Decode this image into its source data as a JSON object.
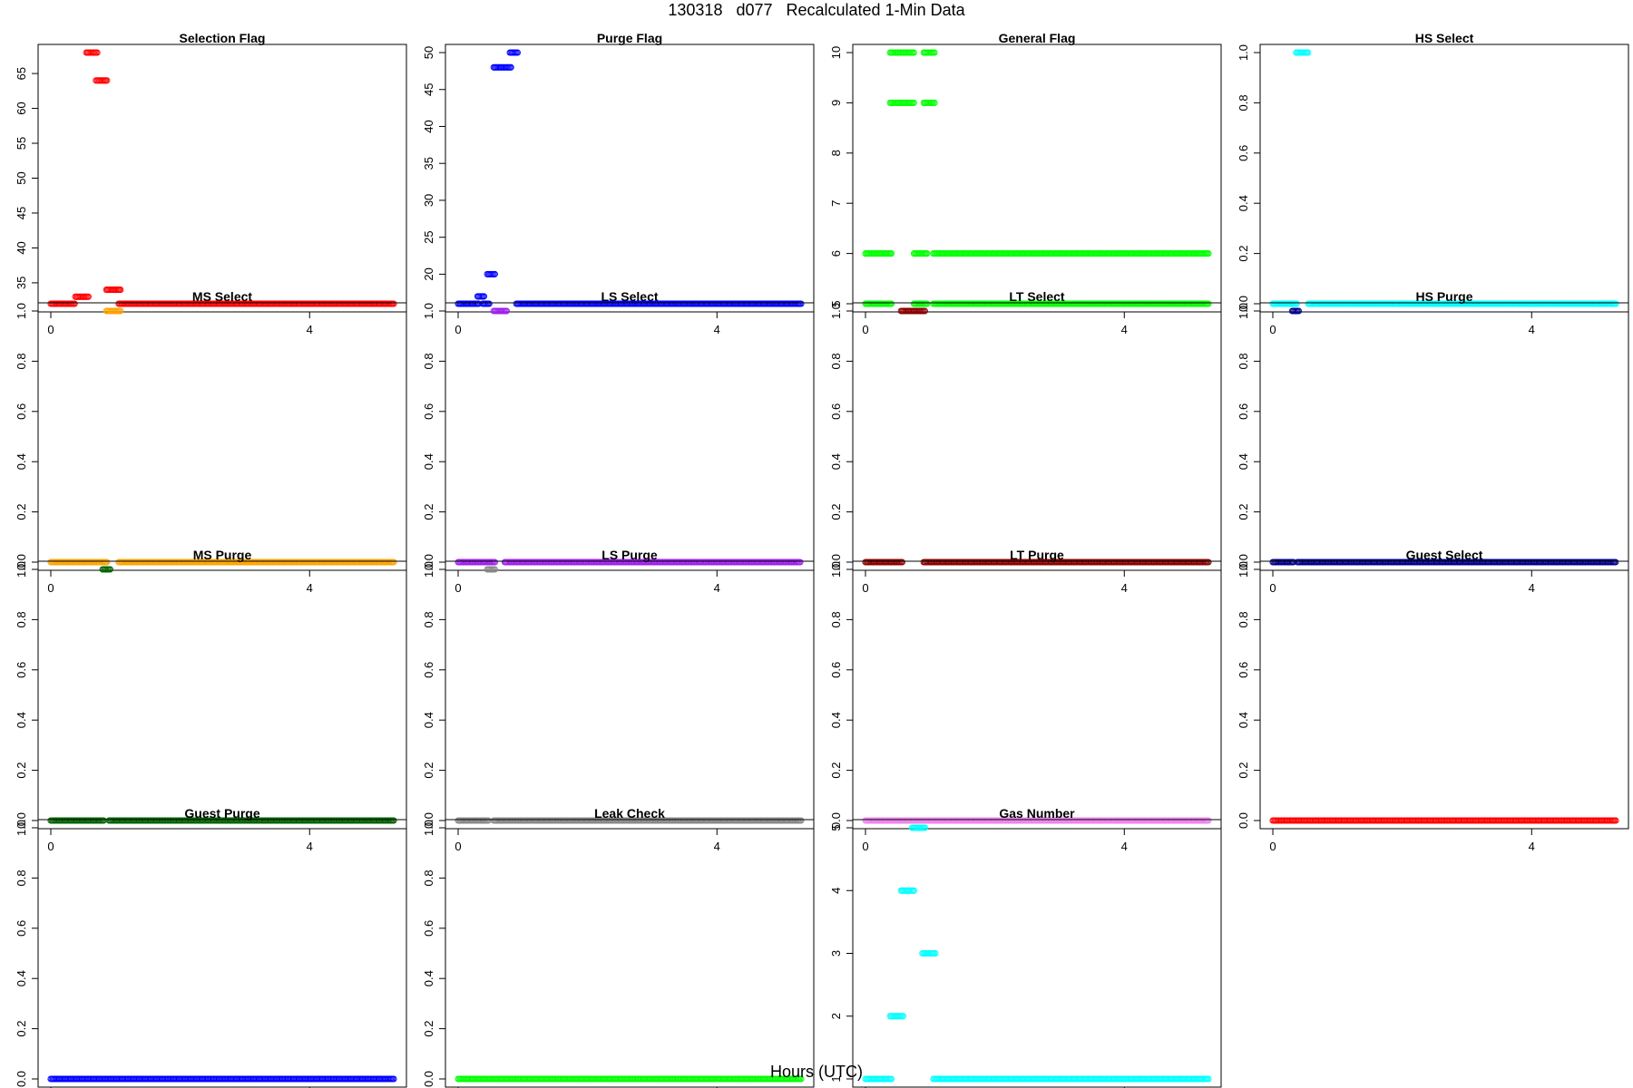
{
  "title": "130318   d077   Recalculated 1-Min Data",
  "xlabel": "Hours (UTC)",
  "chart_data": [
    {
      "type": "scatter",
      "title": "Selection Flag",
      "color": "#ff0000",
      "xlim": [
        0,
        5.3
      ],
      "ylim": [
        32,
        68
      ],
      "yticks": [
        35,
        40,
        45,
        50,
        55,
        60,
        65
      ],
      "xticks": [
        0,
        4
      ],
      "segments": [
        {
          "x0": 0.0,
          "x1": 0.38,
          "y": 32
        },
        {
          "x0": 0.38,
          "x1": 0.58,
          "y": 33
        },
        {
          "x0": 0.55,
          "x1": 0.72,
          "y": 68
        },
        {
          "x0": 0.7,
          "x1": 0.88,
          "y": 64
        },
        {
          "x0": 0.86,
          "x1": 1.08,
          "y": 34
        },
        {
          "x0": 1.05,
          "x1": 5.3,
          "y": 32
        }
      ]
    },
    {
      "type": "scatter",
      "title": "Purge Flag",
      "color": "#0000ff",
      "xlim": [
        0,
        5.3
      ],
      "ylim": [
        16,
        50
      ],
      "yticks": [
        15,
        20,
        25,
        30,
        35,
        40,
        45,
        50
      ],
      "xticks": [
        0,
        4
      ],
      "segments": [
        {
          "x0": 0.0,
          "x1": 0.32,
          "y": 16
        },
        {
          "x0": 0.3,
          "x1": 0.4,
          "y": 17
        },
        {
          "x0": 0.38,
          "x1": 0.48,
          "y": 16
        },
        {
          "x0": 0.45,
          "x1": 0.58,
          "y": 20
        },
        {
          "x0": 0.55,
          "x1": 0.82,
          "y": 48
        },
        {
          "x0": 0.8,
          "x1": 0.92,
          "y": 50
        },
        {
          "x0": 0.9,
          "x1": 5.3,
          "y": 16
        }
      ]
    },
    {
      "type": "scatter",
      "title": "General Flag",
      "color": "#00ff00",
      "xlim": [
        0,
        5.3
      ],
      "ylim": [
        5,
        10
      ],
      "yticks": [
        5,
        6,
        7,
        8,
        9,
        10
      ],
      "xticks": [
        0,
        4
      ],
      "segments": [
        {
          "x0": 0.0,
          "x1": 0.4,
          "y": 6
        },
        {
          "x0": 0.0,
          "x1": 0.4,
          "y": 5
        },
        {
          "x0": 0.38,
          "x1": 0.75,
          "y": 10
        },
        {
          "x0": 0.38,
          "x1": 0.75,
          "y": 9
        },
        {
          "x0": 0.75,
          "x1": 0.95,
          "y": 6
        },
        {
          "x0": 0.75,
          "x1": 0.95,
          "y": 5
        },
        {
          "x0": 0.9,
          "x1": 1.08,
          "y": 10
        },
        {
          "x0": 0.9,
          "x1": 1.08,
          "y": 9
        },
        {
          "x0": 1.05,
          "x1": 5.3,
          "y": 6
        },
        {
          "x0": 1.05,
          "x1": 5.3,
          "y": 5
        }
      ]
    },
    {
      "type": "scatter",
      "title": "HS Select",
      "color": "#00ffff",
      "xlim": [
        0,
        5.3
      ],
      "ylim": [
        0,
        1
      ],
      "yticks": [
        0.0,
        0.2,
        0.4,
        0.6,
        0.8,
        1.0
      ],
      "xticks": [
        0,
        4
      ],
      "segments": [
        {
          "x0": 0.0,
          "x1": 0.38,
          "y": 0
        },
        {
          "x0": 0.36,
          "x1": 0.55,
          "y": 1
        },
        {
          "x0": 0.55,
          "x1": 5.3,
          "y": 0
        }
      ]
    },
    {
      "type": "scatter",
      "title": "MS Select",
      "color": "#ffa500",
      "xlim": [
        0,
        5.3
      ],
      "ylim": [
        0,
        1
      ],
      "yticks": [
        0.0,
        0.2,
        0.4,
        0.6,
        0.8,
        1.0
      ],
      "xticks": [
        0,
        4
      ],
      "segments": [
        {
          "x0": 0.0,
          "x1": 0.88,
          "y": 0
        },
        {
          "x0": 0.86,
          "x1": 1.08,
          "y": 1
        },
        {
          "x0": 1.05,
          "x1": 5.3,
          "y": 0
        }
      ]
    },
    {
      "type": "scatter",
      "title": "LS Select",
      "color": "#a020f0",
      "xlim": [
        0,
        5.3
      ],
      "ylim": [
        0,
        1
      ],
      "yticks": [
        0.0,
        0.2,
        0.4,
        0.6,
        0.8,
        1.0
      ],
      "xticks": [
        0,
        4
      ],
      "segments": [
        {
          "x0": 0.0,
          "x1": 0.58,
          "y": 0
        },
        {
          "x0": 0.55,
          "x1": 0.75,
          "y": 1
        },
        {
          "x0": 0.72,
          "x1": 5.3,
          "y": 0
        }
      ]
    },
    {
      "type": "scatter",
      "title": "LT Select",
      "color": "#8b0000",
      "xlim": [
        0,
        5.3
      ],
      "ylim": [
        0,
        1
      ],
      "yticks": [
        0.0,
        0.2,
        0.4,
        0.6,
        0.8,
        1.0
      ],
      "xticks": [
        0,
        4
      ],
      "segments": [
        {
          "x0": 0.0,
          "x1": 0.58,
          "y": 0
        },
        {
          "x0": 0.55,
          "x1": 0.92,
          "y": 1
        },
        {
          "x0": 0.9,
          "x1": 5.3,
          "y": 0
        }
      ]
    },
    {
      "type": "scatter",
      "title": "HS Purge",
      "color": "#00008b",
      "xlim": [
        0,
        5.3
      ],
      "ylim": [
        0,
        1
      ],
      "yticks": [
        0.0,
        0.2,
        0.4,
        0.6,
        0.8,
        1.0
      ],
      "xticks": [
        0,
        4
      ],
      "segments": [
        {
          "x0": 0.0,
          "x1": 0.32,
          "y": 0
        },
        {
          "x0": 0.3,
          "x1": 0.4,
          "y": 1
        },
        {
          "x0": 0.38,
          "x1": 5.3,
          "y": 0
        }
      ]
    },
    {
      "type": "scatter",
      "title": "MS Purge",
      "color": "#006400",
      "xlim": [
        0,
        5.3
      ],
      "ylim": [
        0,
        1
      ],
      "yticks": [
        0.0,
        0.2,
        0.4,
        0.6,
        0.8,
        1.0
      ],
      "xticks": [
        0,
        4
      ],
      "segments": [
        {
          "x0": 0.0,
          "x1": 0.82,
          "y": 0
        },
        {
          "x0": 0.8,
          "x1": 0.92,
          "y": 1
        },
        {
          "x0": 0.9,
          "x1": 5.3,
          "y": 0
        }
      ]
    },
    {
      "type": "scatter",
      "title": "LS Purge",
      "color": "#888888",
      "xlim": [
        0,
        5.3
      ],
      "ylim": [
        0,
        1
      ],
      "yticks": [
        0.0,
        0.2,
        0.4,
        0.6,
        0.8,
        1.0
      ],
      "xticks": [
        0,
        4
      ],
      "segments": [
        {
          "x0": 0.0,
          "x1": 0.48,
          "y": 0
        },
        {
          "x0": 0.45,
          "x1": 0.58,
          "y": 1
        },
        {
          "x0": 0.55,
          "x1": 5.3,
          "y": 0
        }
      ]
    },
    {
      "type": "scatter",
      "title": "LT Purge",
      "color": "#ee82ee",
      "xlim": [
        0,
        5.3
      ],
      "ylim": [
        0,
        1
      ],
      "yticks": [
        0.0,
        0.2,
        0.4,
        0.6,
        0.8,
        1.0
      ],
      "xticks": [
        0,
        4
      ],
      "segments": [
        {
          "x0": 0.0,
          "x1": 5.3,
          "y": 0
        }
      ]
    },
    {
      "type": "scatter",
      "title": "Guest Select",
      "color": "#ff0000",
      "xlim": [
        0,
        5.3
      ],
      "ylim": [
        0,
        1
      ],
      "yticks": [
        0.0,
        0.2,
        0.4,
        0.6,
        0.8,
        1.0
      ],
      "xticks": [
        0,
        4
      ],
      "segments": [
        {
          "x0": 0.0,
          "x1": 5.3,
          "y": 0
        }
      ]
    },
    {
      "type": "scatter",
      "title": "Guest Purge",
      "color": "#0000ff",
      "xlim": [
        0,
        5.3
      ],
      "ylim": [
        0,
        1
      ],
      "yticks": [
        0.0,
        0.2,
        0.4,
        0.6,
        0.8,
        1.0
      ],
      "xticks": [
        0,
        4
      ],
      "segments": [
        {
          "x0": 0.0,
          "x1": 5.3,
          "y": 0
        }
      ]
    },
    {
      "type": "scatter",
      "title": "Leak Check",
      "color": "#00ff00",
      "xlim": [
        0,
        5.3
      ],
      "ylim": [
        0,
        1
      ],
      "yticks": [
        0.0,
        0.2,
        0.4,
        0.6,
        0.8,
        1.0
      ],
      "xticks": [
        0,
        4
      ],
      "segments": [
        {
          "x0": 0.0,
          "x1": 5.3,
          "y": 0
        }
      ]
    },
    {
      "type": "scatter",
      "title": "Gas Number",
      "color": "#00ffff",
      "xlim": [
        0,
        5.3
      ],
      "ylim": [
        1,
        5
      ],
      "yticks": [
        1,
        2,
        3,
        4,
        5
      ],
      "xticks": [
        0,
        4
      ],
      "segments": [
        {
          "x0": 0.0,
          "x1": 0.4,
          "y": 1
        },
        {
          "x0": 0.38,
          "x1": 0.58,
          "y": 2
        },
        {
          "x0": 0.55,
          "x1": 0.75,
          "y": 4
        },
        {
          "x0": 0.72,
          "x1": 0.92,
          "y": 5
        },
        {
          "x0": 0.88,
          "x1": 1.08,
          "y": 3
        },
        {
          "x0": 1.05,
          "x1": 5.3,
          "y": 1
        }
      ]
    }
  ]
}
